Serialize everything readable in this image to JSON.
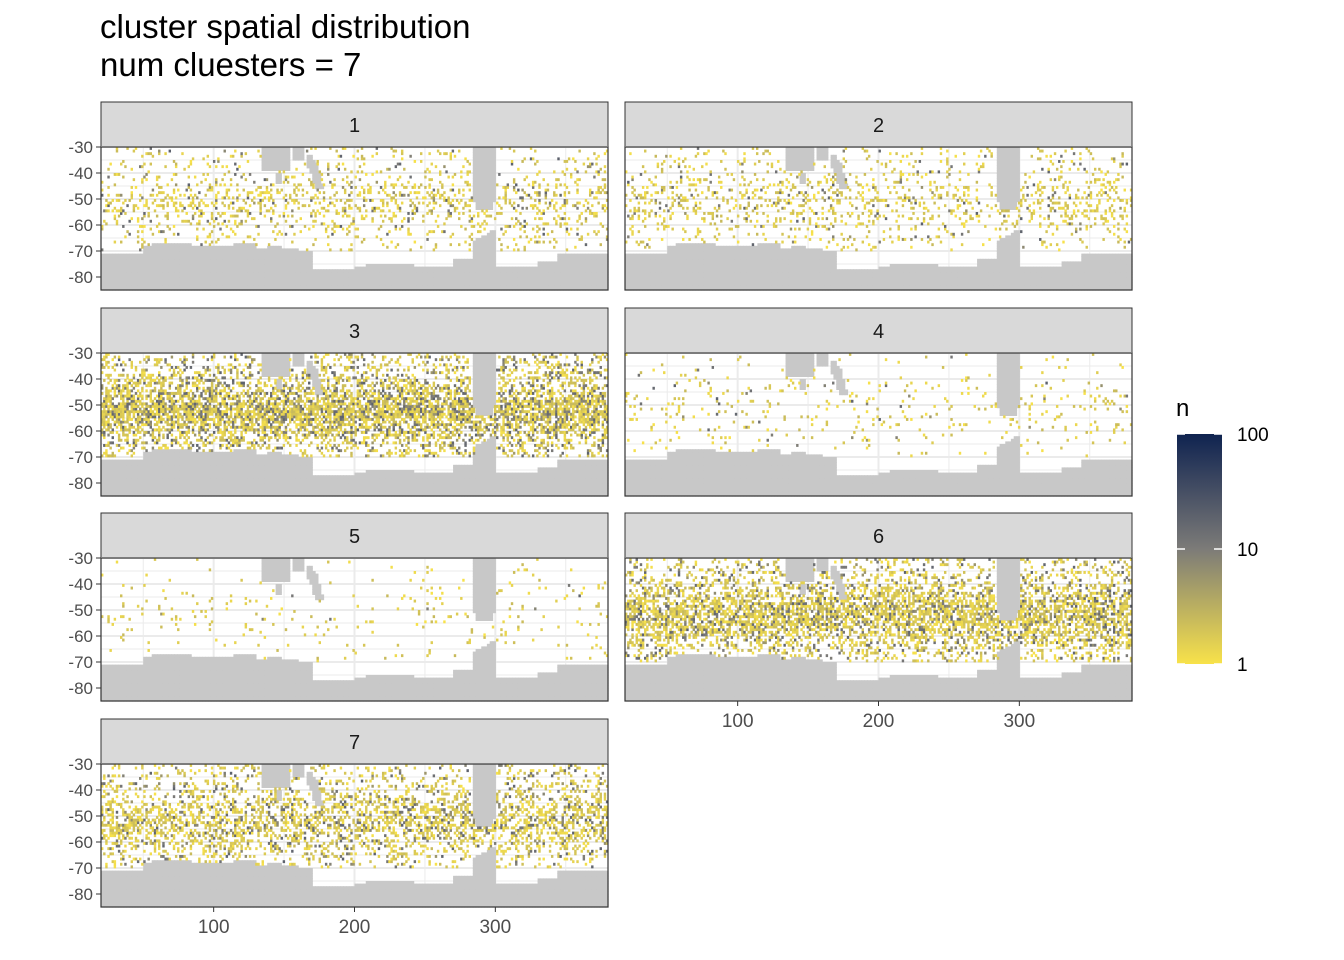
{
  "chart_data": {
    "type": "heatmap",
    "title": "cluster spatial distribution",
    "subtitle": "num cluesters = 7",
    "facets": [
      "1",
      "2",
      "3",
      "4",
      "5",
      "6",
      "7"
    ],
    "xlim": [
      20,
      380
    ],
    "ylim": [
      -85,
      -30
    ],
    "x_ticks": [
      100,
      200,
      300
    ],
    "y_ticks": [
      -30,
      -40,
      -50,
      -60,
      -70,
      -80
    ],
    "legend": {
      "title": "n",
      "placement": "right",
      "scale": "log10",
      "breaks": [
        1,
        10,
        100
      ],
      "break_labels": [
        "1",
        "10",
        "100"
      ],
      "colors": {
        "low": "#f8e24a",
        "mid": "#7c7b78",
        "high": "#0f2350"
      }
    },
    "colors": {
      "land": "#c8c8c8",
      "strip": "#d9d9d9",
      "grid": "#ebebeb",
      "panel_border": "#333333"
    },
    "cluster_density": {
      "1": 0.2,
      "2": 0.17,
      "3": 0.62,
      "4": 0.06,
      "5": 0.04,
      "6": 0.55,
      "7": 0.4
    },
    "cluster_dark_fraction": {
      "1": 0.15,
      "2": 0.15,
      "3": 0.3,
      "4": 0.08,
      "5": 0.02,
      "6": 0.25,
      "7": 0.22
    }
  }
}
